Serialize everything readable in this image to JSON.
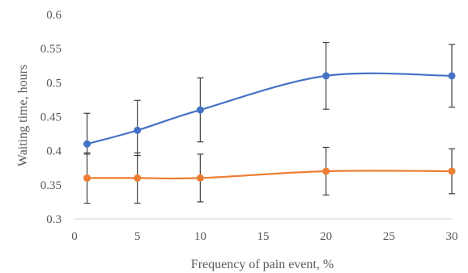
{
  "chart_data": {
    "type": "line",
    "xlabel": "Frequency of pain event, %",
    "ylabel": "Waiting time, hours",
    "xlim": [
      0,
      30
    ],
    "ylim": [
      0.3,
      0.6
    ],
    "x_ticks": [
      0,
      5,
      10,
      15,
      20,
      25,
      30
    ],
    "y_ticks": [
      0.3,
      0.35,
      0.4,
      0.45,
      0.5,
      0.55,
      0.6
    ],
    "x_tick_labels": [
      "0",
      "5",
      "10",
      "15",
      "20",
      "25",
      "30"
    ],
    "y_tick_labels": [
      "0.3",
      "0.35",
      "0.4",
      "0.45",
      "0.5",
      "0.55",
      "0.6"
    ],
    "grid": false,
    "smooth": true,
    "error_bars": true,
    "series": [
      {
        "color": "#4472C4",
        "x": [
          1,
          5,
          10,
          20,
          30
        ],
        "y": [
          0.41,
          0.43,
          0.46,
          0.51,
          0.51
        ],
        "err_low": [
          0.395,
          0.393,
          0.413,
          0.461,
          0.464
        ],
        "err_high": [
          0.455,
          0.474,
          0.507,
          0.559,
          0.556
        ]
      },
      {
        "color": "#ED7D31",
        "x": [
          1,
          5,
          10,
          20,
          30
        ],
        "y": [
          0.36,
          0.36,
          0.36,
          0.37,
          0.37
        ],
        "err_low": [
          0.323,
          0.323,
          0.325,
          0.335,
          0.337
        ],
        "err_high": [
          0.397,
          0.397,
          0.395,
          0.405,
          0.403
        ]
      }
    ]
  }
}
